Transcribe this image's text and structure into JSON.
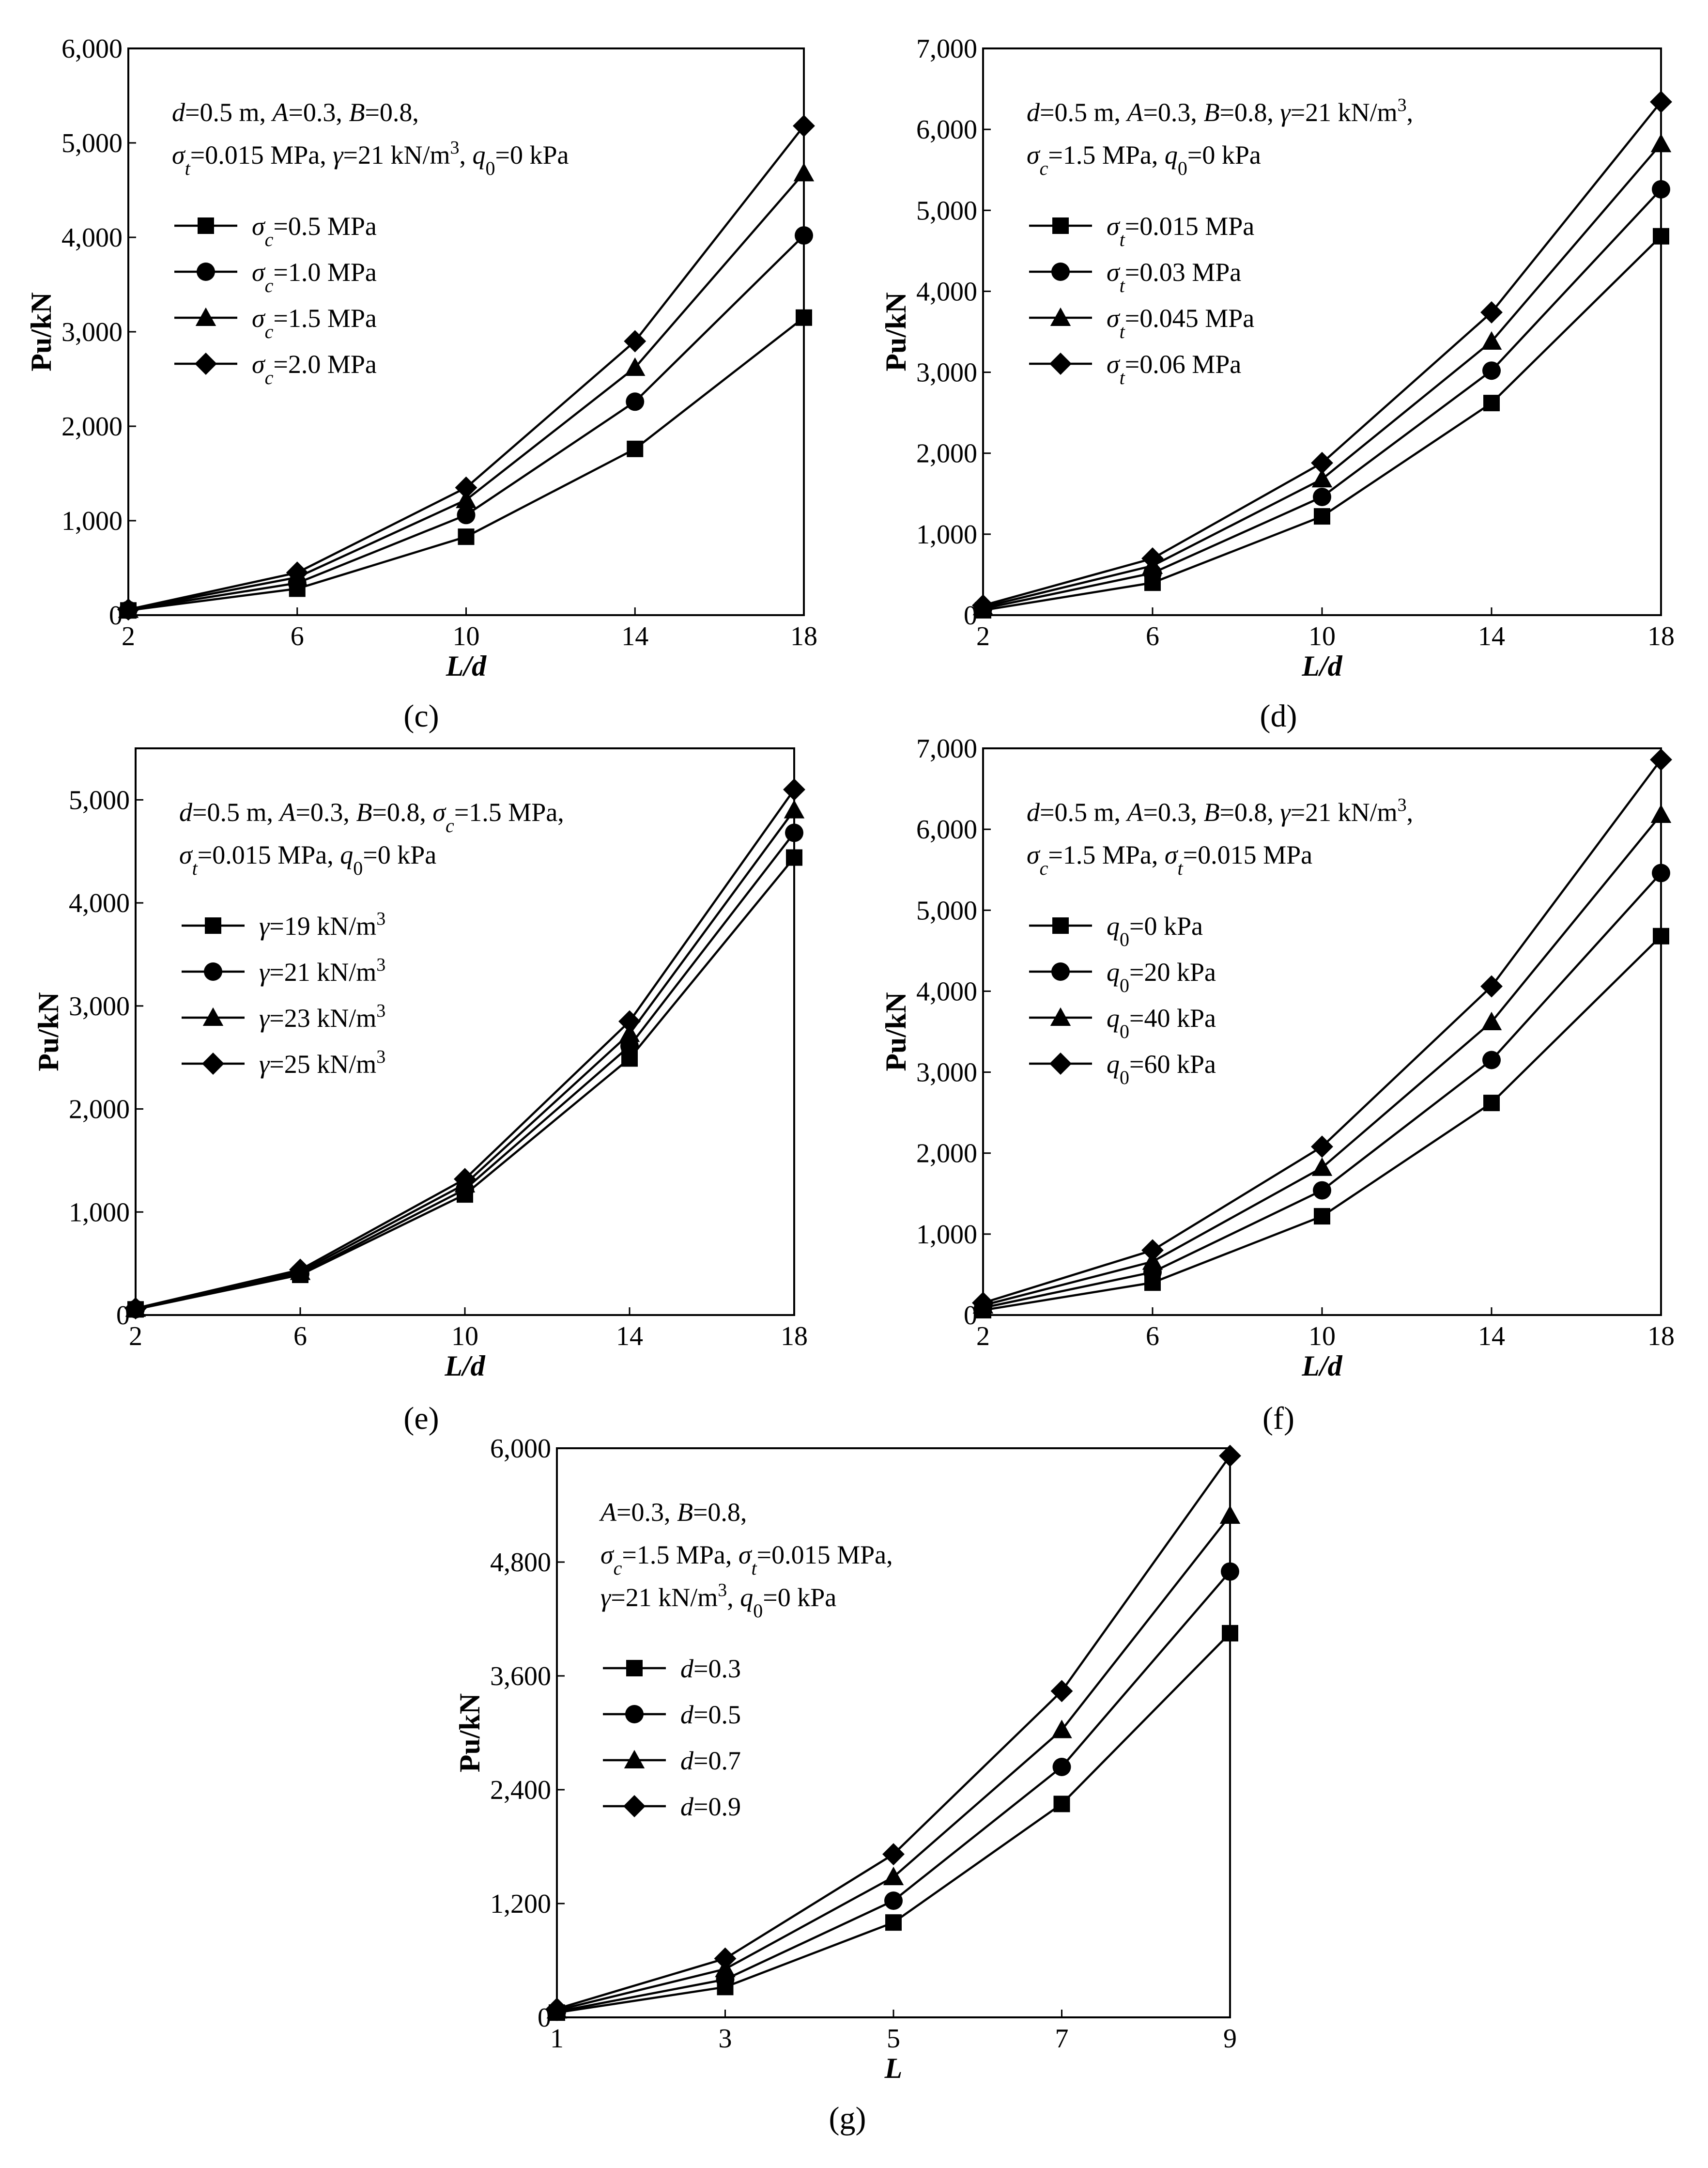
{
  "figure": {
    "panels": [
      "c",
      "d",
      "e",
      "f",
      "g"
    ]
  },
  "chart_data": [
    {
      "id": "c",
      "panel_label": "(c)",
      "type": "line",
      "xlabel": "L/d",
      "ylabel": "Pu/kN",
      "x": [
        2,
        6,
        10,
        14,
        18
      ],
      "xlim": [
        2,
        18
      ],
      "ylim": [
        0,
        6000
      ],
      "xticks": [
        "2",
        "6",
        "10",
        "14",
        "18"
      ],
      "yticks": [
        "0",
        "1,000",
        "2,000",
        "3,000",
        "4,000",
        "5,000",
        "6,000"
      ],
      "params": [
        "d=0.5 m, A=0.3, B=0.8,",
        "σt=0.015 MPa, γ=21 kN/m³, q0=0 kPa"
      ],
      "series": [
        {
          "name": "σc=0.5 MPa",
          "marker": "square",
          "values": [
            50,
            280,
            830,
            1760,
            3150
          ]
        },
        {
          "name": "σc=1.0 MPa",
          "marker": "circle",
          "values": [
            55,
            340,
            1060,
            2260,
            4020
          ]
        },
        {
          "name": "σc=1.5 MPa",
          "marker": "triangle",
          "values": [
            58,
            400,
            1220,
            2620,
            4680
          ]
        },
        {
          "name": "σc=2.0 MPa",
          "marker": "diamond",
          "values": [
            60,
            450,
            1350,
            2900,
            5180
          ]
        }
      ]
    },
    {
      "id": "d",
      "panel_label": "(d)",
      "type": "line",
      "xlabel": "L/d",
      "ylabel": "Pu/kN",
      "x": [
        2,
        6,
        10,
        14,
        18
      ],
      "xlim": [
        2,
        18
      ],
      "ylim": [
        0,
        7000
      ],
      "xticks": [
        "2",
        "6",
        "10",
        "14",
        "18"
      ],
      "yticks": [
        "0",
        "1,000",
        "2,000",
        "3,000",
        "4,000",
        "5,000",
        "6,000",
        "7,000"
      ],
      "params": [
        "d=0.5 m, A=0.3, B=0.8, γ=21 kN/m³,",
        "σc=1.5 MPa, q0=0 kPa"
      ],
      "series": [
        {
          "name": "σt=0.015 MPa",
          "marker": "square",
          "values": [
            60,
            400,
            1220,
            2620,
            4680
          ]
        },
        {
          "name": "σt=0.03 MPa",
          "marker": "circle",
          "values": [
            80,
            520,
            1460,
            3020,
            5260
          ]
        },
        {
          "name": "σt=0.045 MPa",
          "marker": "triangle",
          "values": [
            100,
            610,
            1680,
            3380,
            5820
          ]
        },
        {
          "name": "σt=0.06 MPa",
          "marker": "diamond",
          "values": [
            120,
            700,
            1880,
            3740,
            6340
          ]
        }
      ]
    },
    {
      "id": "e",
      "panel_label": "(e)",
      "type": "line",
      "xlabel": "L/d",
      "ylabel": "Pu/kN",
      "x": [
        2,
        6,
        10,
        14,
        18
      ],
      "xlim": [
        2,
        18
      ],
      "ylim": [
        0,
        5500
      ],
      "xticks": [
        "2",
        "6",
        "10",
        "14",
        "18"
      ],
      "yticks": [
        "0",
        "1,000",
        "2,000",
        "3,000",
        "4,000",
        "5,000"
      ],
      "params": [
        "d=0.5 m, A=0.3, B=0.8, σc=1.5 MPa,",
        "σt=0.015 MPa, q0=0 kPa"
      ],
      "series": [
        {
          "name": "γ=19 kN/m³",
          "marker": "square",
          "values": [
            55,
            390,
            1170,
            2490,
            4440
          ]
        },
        {
          "name": "γ=21 kN/m³",
          "marker": "circle",
          "values": [
            58,
            400,
            1220,
            2610,
            4680
          ]
        },
        {
          "name": "γ=23 kN/m³",
          "marker": "triangle",
          "values": [
            62,
            420,
            1270,
            2730,
            4900
          ]
        },
        {
          "name": "γ=25 kN/m³",
          "marker": "diamond",
          "values": [
            65,
            440,
            1320,
            2850,
            5100
          ]
        }
      ]
    },
    {
      "id": "f",
      "panel_label": "(f)",
      "type": "line",
      "xlabel": "L/d",
      "ylabel": "Pu/kN",
      "x": [
        2,
        6,
        10,
        14,
        18
      ],
      "xlim": [
        2,
        18
      ],
      "ylim": [
        0,
        7000
      ],
      "xticks": [
        "2",
        "6",
        "10",
        "14",
        "18"
      ],
      "yticks": [
        "0",
        "1,000",
        "2,000",
        "3,000",
        "4,000",
        "5,000",
        "6,000",
        "7,000"
      ],
      "params": [
        "d=0.5 m, A=0.3, B=0.8, γ=21 kN/m³,",
        "σc=1.5 MPa, σt=0.015 MPa"
      ],
      "series": [
        {
          "name": "q0=0 kPa",
          "marker": "square",
          "values": [
            60,
            400,
            1220,
            2620,
            4680
          ]
        },
        {
          "name": "q0=20 kPa",
          "marker": "circle",
          "values": [
            90,
            530,
            1540,
            3150,
            5460
          ]
        },
        {
          "name": "q0=40 kPa",
          "marker": "triangle",
          "values": [
            120,
            660,
            1820,
            3620,
            6180
          ]
        },
        {
          "name": "q0=60 kPa",
          "marker": "diamond",
          "values": [
            150,
            800,
            2080,
            4060,
            6860
          ]
        }
      ]
    },
    {
      "id": "g",
      "panel_label": "(g)",
      "type": "line",
      "xlabel": "L",
      "ylabel": "Pu/kN",
      "x": [
        1,
        3,
        5,
        7,
        9
      ],
      "xlim": [
        1,
        9
      ],
      "ylim": [
        0,
        6000
      ],
      "xticks": [
        "1",
        "3",
        "5",
        "7",
        "9"
      ],
      "yticks": [
        "0",
        "1,200",
        "2,400",
        "3,600",
        "4,800",
        "6,000"
      ],
      "params": [
        "A=0.3, B=0.8,",
        "σc=1.5 MPa, σt=0.015 MPa,",
        "γ=21 kN/m³, q0=0 kPa"
      ],
      "series": [
        {
          "name": "d=0.3",
          "marker": "square",
          "values": [
            50,
            320,
            1000,
            2250,
            4050
          ]
        },
        {
          "name": "d=0.5",
          "marker": "circle",
          "values": [
            60,
            400,
            1230,
            2640,
            4700
          ]
        },
        {
          "name": "d=0.7",
          "marker": "triangle",
          "values": [
            75,
            510,
            1480,
            3030,
            5290
          ]
        },
        {
          "name": "d=0.9",
          "marker": "diamond",
          "values": [
            90,
            620,
            1720,
            3440,
            5920
          ]
        }
      ]
    }
  ]
}
